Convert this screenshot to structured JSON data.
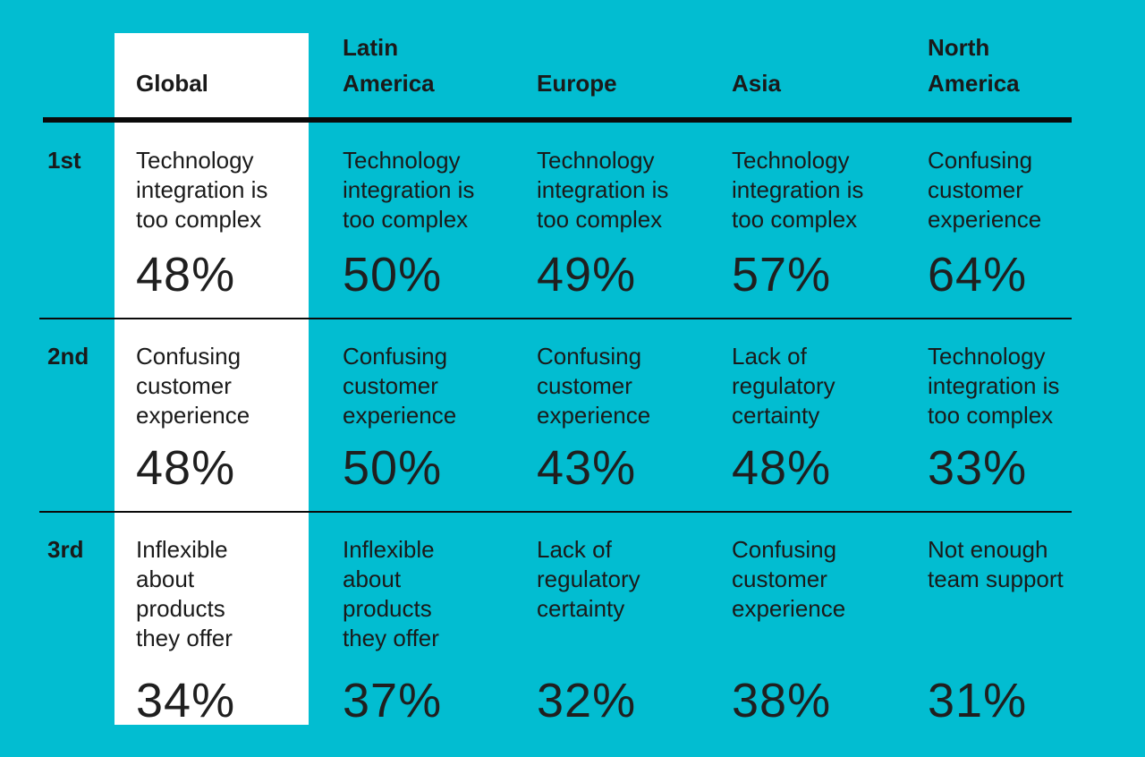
{
  "palette": {
    "background": "#02BDD1",
    "highlight_column": "#FFFFFF",
    "text": "#1A1A1A",
    "divider": "#0A0A0A"
  },
  "header": {
    "global": "Global",
    "latin_america": "Latin\nAmerica",
    "europe": "Europe",
    "asia": "Asia",
    "north_america": "North\nAmerica"
  },
  "table": {
    "rows": [
      {
        "rank": "1st",
        "cells": [
          {
            "text": "Technology\nintegration is\ntoo complex",
            "value": "48%"
          },
          {
            "text": "Technology\nintegration is\ntoo complex",
            "value": "50%"
          },
          {
            "text": "Technology\nintegration is\ntoo complex",
            "value": "49%"
          },
          {
            "text": "Technology\nintegration is\ntoo complex",
            "value": "57%"
          },
          {
            "text": "Confusing\ncustomer\nexperience",
            "value": "64%"
          }
        ]
      },
      {
        "rank": "2nd",
        "cells": [
          {
            "text": "Confusing\ncustomer\nexperience",
            "value": "48%"
          },
          {
            "text": "Confusing\ncustomer\nexperience",
            "value": "50%"
          },
          {
            "text": "Confusing\ncustomer\nexperience",
            "value": "43%"
          },
          {
            "text": "Lack of\nregulatory\ncertainty",
            "value": "48%"
          },
          {
            "text": "Technology\nintegration is\ntoo complex",
            "value": "33%"
          }
        ]
      },
      {
        "rank": "3rd",
        "cells": [
          {
            "text": "Inflexible\nabout\nproducts\nthey offer",
            "value": "34%"
          },
          {
            "text": "Inflexible\nabout\nproducts\nthey offer",
            "value": "37%"
          },
          {
            "text": "Lack of\nregulatory\ncertainty",
            "value": "32%"
          },
          {
            "text": "Confusing\ncustomer\nexperience",
            "value": "38%"
          },
          {
            "text": "Not enough\nteam support",
            "value": "31%"
          }
        ]
      }
    ]
  },
  "chart_data": {
    "type": "table",
    "columns": [
      "Global",
      "Latin America",
      "Europe",
      "Asia",
      "North America"
    ],
    "rank_labels": [
      "1st",
      "2nd",
      "3rd"
    ],
    "highlighted_column": "Global",
    "rows": [
      {
        "rank": "1st",
        "entries": [
          {
            "region": "Global",
            "challenge": "Technology integration is too complex",
            "value_pct": 48
          },
          {
            "region": "Latin America",
            "challenge": "Technology integration is too complex",
            "value_pct": 50
          },
          {
            "region": "Europe",
            "challenge": "Technology integration is too complex",
            "value_pct": 49
          },
          {
            "region": "Asia",
            "challenge": "Technology integration is too complex",
            "value_pct": 57
          },
          {
            "region": "North America",
            "challenge": "Confusing customer experience",
            "value_pct": 64
          }
        ]
      },
      {
        "rank": "2nd",
        "entries": [
          {
            "region": "Global",
            "challenge": "Confusing customer experience",
            "value_pct": 48
          },
          {
            "region": "Latin America",
            "challenge": "Confusing customer experience",
            "value_pct": 50
          },
          {
            "region": "Europe",
            "challenge": "Confusing customer experience",
            "value_pct": 43
          },
          {
            "region": "Asia",
            "challenge": "Lack of regulatory certainty",
            "value_pct": 48
          },
          {
            "region": "North America",
            "challenge": "Technology integration is too complex",
            "value_pct": 33
          }
        ]
      },
      {
        "rank": "3rd",
        "entries": [
          {
            "region": "Global",
            "challenge": "Inflexible about products they offer",
            "value_pct": 34
          },
          {
            "region": "Latin America",
            "challenge": "Inflexible about products they offer",
            "value_pct": 37
          },
          {
            "region": "Europe",
            "challenge": "Lack of regulatory certainty",
            "value_pct": 32
          },
          {
            "region": "Asia",
            "challenge": "Confusing customer experience",
            "value_pct": 38
          },
          {
            "region": "North America",
            "challenge": "Not enough team support",
            "value_pct": 31
          }
        ]
      }
    ]
  }
}
